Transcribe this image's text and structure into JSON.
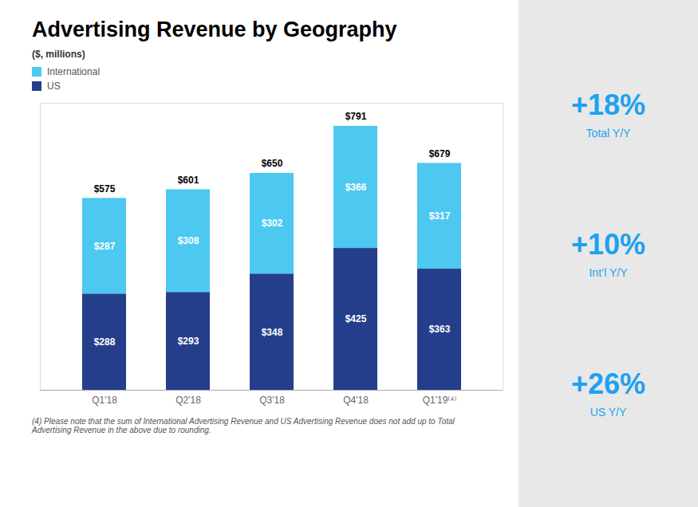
{
  "chart_data": {
    "type": "bar",
    "stacked": true,
    "title": "Advertising Revenue by Geography",
    "subtitle": "($, millions)",
    "categories": [
      "Q1'18",
      "Q2'18",
      "Q3'18",
      "Q4'18",
      "Q1'19⁽⁴⁾"
    ],
    "series": [
      {
        "name": "International",
        "color": "#4DC8F0",
        "values": [
          287,
          308,
          302,
          366,
          317
        ],
        "value_labels": [
          "$287",
          "$308",
          "$302",
          "$366",
          "$317"
        ]
      },
      {
        "name": "US",
        "color": "#253E8C",
        "values": [
          288,
          293,
          348,
          425,
          363
        ],
        "value_labels": [
          "$288",
          "$293",
          "$348",
          "$425",
          "$363"
        ]
      }
    ],
    "totals": [
      575,
      601,
      650,
      791,
      679
    ],
    "total_labels": [
      "$575",
      "$601",
      "$650",
      "$791",
      "$679"
    ],
    "data_labels": true,
    "ylim": [
      0,
      860
    ],
    "yticks": [],
    "tick_labels": "x",
    "grid": false,
    "legend": "upper left",
    "annotations": [
      {
        "value": 18,
        "label": "+18%",
        "text": "Total Y/Y",
        "color": "#1DA1F2"
      },
      {
        "value": 10,
        "label": "+10%",
        "text": "Int’l Y/Y",
        "color": "#1DA1F2"
      },
      {
        "value": 26,
        "label": "+26%",
        "text": "US Y/Y",
        "color": "#1DA1F2"
      }
    ],
    "footnote": "(4) Please note that the sum of International Advertising Revenue and US Advertising Revenue does not add up to Total\nAdvertising Revenue in the above due to rounding."
  }
}
